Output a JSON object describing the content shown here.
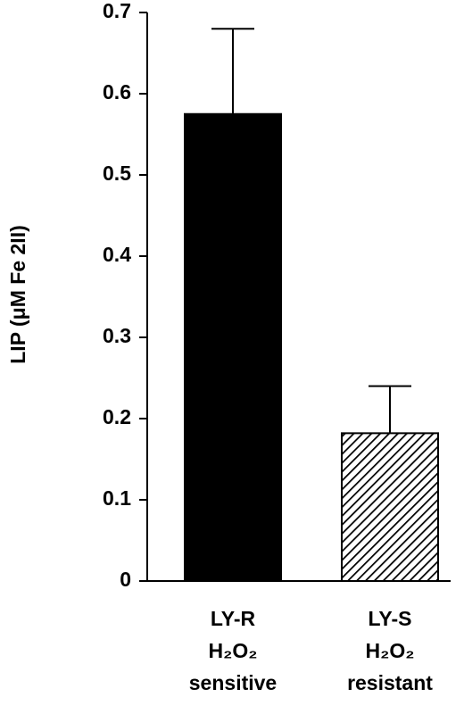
{
  "chart_data": {
    "type": "bar",
    "y_label": "LIP (μM Fe 2II)",
    "categories": [
      [
        "LY-R",
        "H₂O₂",
        "sensitive"
      ],
      [
        "LY-S",
        "H₂O₂",
        "resistant"
      ]
    ],
    "values": [
      0.575,
      0.182
    ],
    "errors": [
      0.105,
      0.058
    ],
    "fills": [
      "solid",
      "hatch"
    ],
    "color": "#000000",
    "ylim": [
      0,
      0.7
    ],
    "yticks": [
      0,
      0.1,
      0.2,
      0.3,
      0.4,
      0.5,
      0.6,
      0.7
    ]
  }
}
